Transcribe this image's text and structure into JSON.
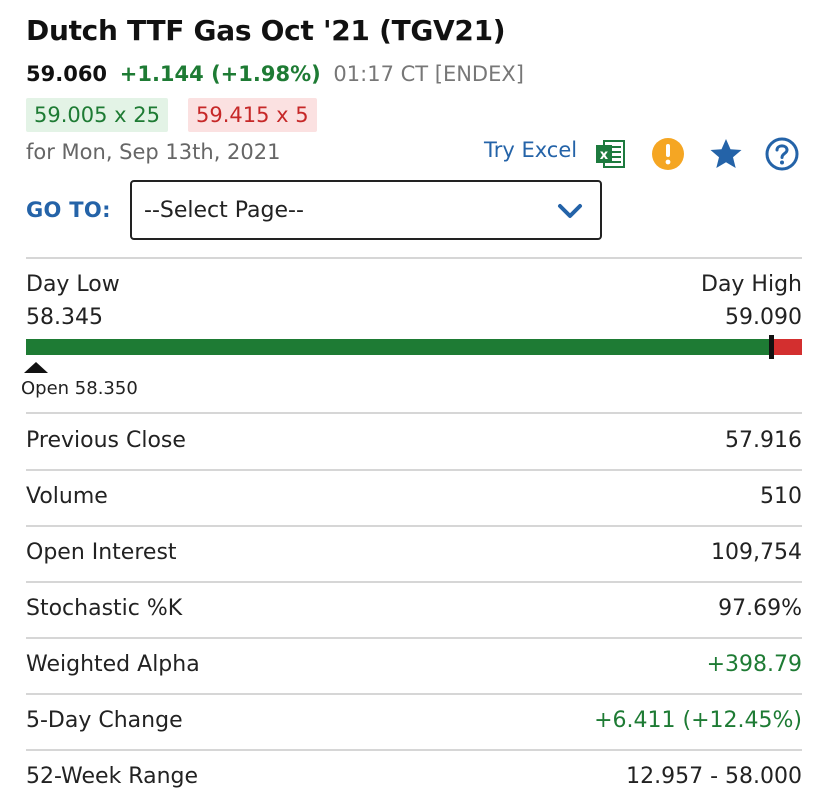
{
  "header": {
    "title": "Dutch TTF Gas Oct '21 (TGV21)",
    "last_price": "59.060",
    "change": "+1.144 (+1.98%)",
    "time_exchange": "01:17 CT [ENDEX]",
    "bid": "59.005 x 25",
    "ask": "59.415 x 5",
    "date_line": "for Mon, Sep 13th, 2021"
  },
  "toolbar": {
    "try_excel_label": "Try Excel",
    "icons": [
      "excel-icon",
      "alert-icon",
      "star-icon",
      "help-icon"
    ]
  },
  "goto": {
    "label": "GO TO:",
    "selected": "--Select Page--"
  },
  "day_range": {
    "low_label": "Day Low",
    "low_value": "58.345",
    "high_label": "Day High",
    "high_value": "59.090",
    "low": 58.345,
    "high": 59.09,
    "last": 59.06,
    "open": 58.35,
    "open_text": "Open 58.350"
  },
  "stats": [
    {
      "label": "Previous Close",
      "value": "57.916",
      "positive": false
    },
    {
      "label": "Volume",
      "value": "510",
      "positive": false
    },
    {
      "label": "Open Interest",
      "value": "109,754",
      "positive": false
    },
    {
      "label": "Stochastic %K",
      "value": "97.69%",
      "positive": false
    },
    {
      "label": "Weighted Alpha",
      "value": "+398.79",
      "positive": true
    },
    {
      "label": "5-Day Change",
      "value": "+6.411 (+12.45%)",
      "positive": true
    },
    {
      "label": "52-Week Range",
      "value": "12.957 - 58.000",
      "positive": false
    }
  ],
  "colors": {
    "up_green": "#1e7b34",
    "down_red": "#d32f2f",
    "link_blue": "#2463a8",
    "alert_orange": "#f5a623",
    "excel_green": "#1d7a3e"
  }
}
